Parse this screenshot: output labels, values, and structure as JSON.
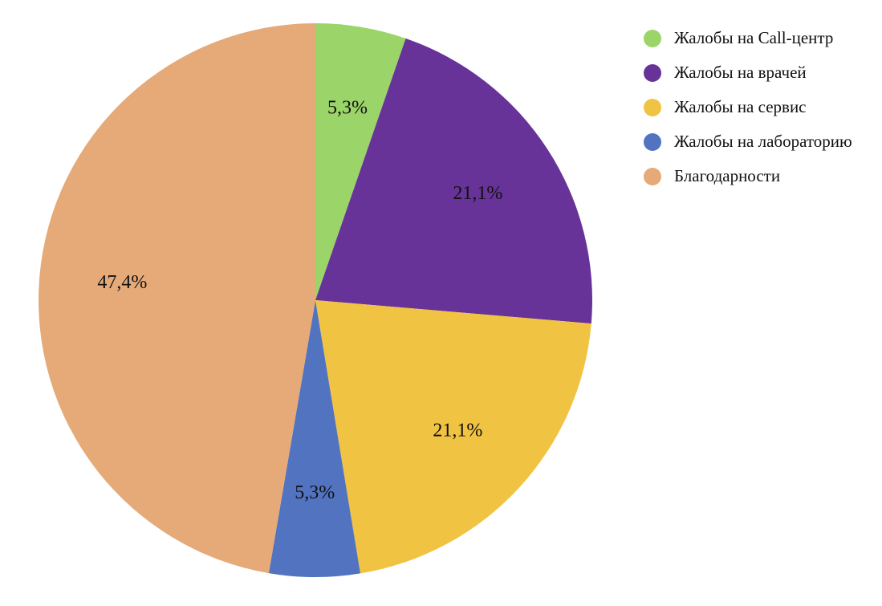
{
  "chart_data": {
    "type": "pie",
    "title": "",
    "categories": [
      "Жалобы на Call-центр",
      "Жалобы на врачей",
      "Жалобы на сервис",
      "Жалобы на лабораторию",
      "Благодарности"
    ],
    "values": [
      5.3,
      21.1,
      21.1,
      5.3,
      47.4
    ],
    "data_labels": [
      "5,3%",
      "21,1%",
      "21,1%",
      "5,3%",
      "47,4%"
    ],
    "colors": [
      "#9bd56a",
      "#673399",
      "#f1c342",
      "#5274c0",
      "#e6a978"
    ],
    "start_angle_deg": 0,
    "direction": "clockwise",
    "legend_position": "top-right"
  }
}
